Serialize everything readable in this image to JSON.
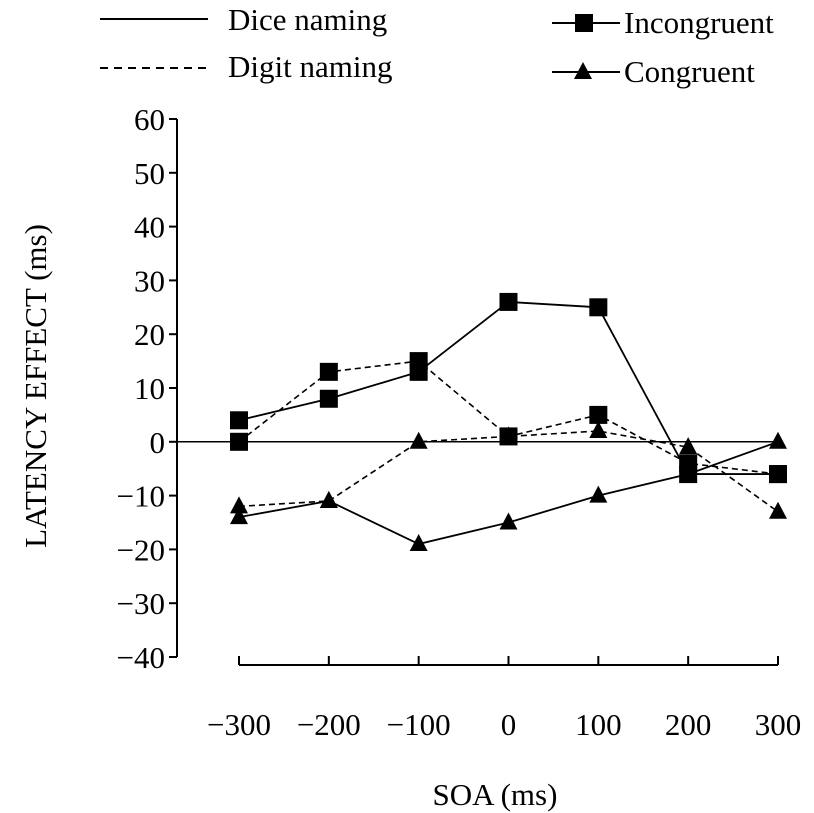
{
  "chart_data": {
    "type": "line",
    "xlabel": "SOA (ms)",
    "ylabel": "LATENCY EFFECT (ms)",
    "x": [
      -300,
      -200,
      -100,
      0,
      100,
      200,
      300
    ],
    "xticks": [
      "−300",
      "−200",
      "−100",
      "0",
      "100",
      "200",
      "300"
    ],
    "yticks": [
      "60",
      "50",
      "40",
      "30",
      "20",
      "10",
      "0",
      "−10",
      "−20",
      "−30",
      "−40"
    ],
    "ylim": [
      -40,
      60
    ],
    "xlim": [
      -300,
      300
    ],
    "zero_line": true,
    "legend": {
      "line_styles": [
        {
          "label": "Dice naming",
          "style": "solid"
        },
        {
          "label": "Digit naming",
          "style": "dashed"
        }
      ],
      "markers": [
        {
          "label": "Incongruent",
          "marker": "square"
        },
        {
          "label": "Congruent",
          "marker": "triangle"
        }
      ],
      "placement": "top"
    },
    "series": [
      {
        "task": "dice",
        "condition": "incongruent",
        "style": "solid",
        "marker": "square",
        "values": [
          4,
          8,
          13,
          26,
          25,
          -6,
          -6
        ]
      },
      {
        "task": "digit",
        "condition": "incongruent",
        "style": "dashed",
        "marker": "square",
        "values": [
          0,
          13,
          15,
          1,
          5,
          -4,
          -6
        ]
      },
      {
        "task": "dice",
        "condition": "congruent",
        "style": "solid",
        "marker": "triangle",
        "values": [
          -14,
          -11,
          -19,
          -15,
          -10,
          -6,
          0
        ]
      },
      {
        "task": "digit",
        "condition": "congruent",
        "style": "dashed",
        "marker": "triangle",
        "values": [
          -12,
          -11,
          0,
          1,
          2,
          -1,
          -13
        ]
      }
    ],
    "colors": {
      "ink": "#000000",
      "background": "#ffffff"
    }
  }
}
